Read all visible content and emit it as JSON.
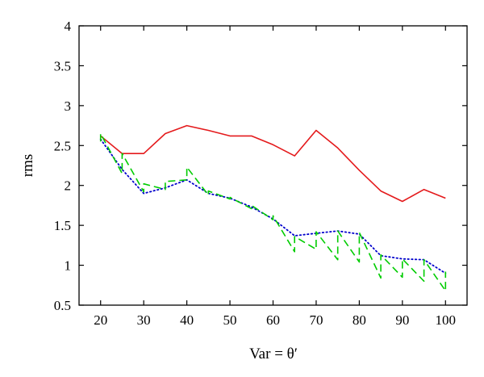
{
  "chart_data": {
    "type": "line",
    "title": "",
    "xlabel": "Var = θ′",
    "ylabel": "rms",
    "xlim": [
      15,
      105
    ],
    "ylim": [
      0.5,
      4
    ],
    "xticks": [
      "20",
      "30",
      "40",
      "50",
      "60",
      "70",
      "80",
      "90",
      "100"
    ],
    "yticks": [
      "0.5",
      "1",
      "1.5",
      "2",
      "2.5",
      "3",
      "3.5",
      "4"
    ],
    "grid": false,
    "legend": "none",
    "series": [
      {
        "color": "#e41a1c",
        "dash": "solid",
        "x": [
          20,
          25,
          30,
          35,
          40,
          45,
          50,
          55,
          60,
          65,
          70,
          75,
          80,
          85,
          90,
          95,
          100
        ],
        "y": [
          2.62,
          2.4,
          2.4,
          2.65,
          2.75,
          2.69,
          2.62,
          2.62,
          2.51,
          2.37,
          2.69,
          2.47,
          2.19,
          1.93,
          1.8,
          1.95,
          1.84
        ]
      },
      {
        "color": "#0000cc",
        "dash": "dotted",
        "x": [
          20,
          25,
          30,
          35,
          40,
          45,
          50,
          55,
          60,
          65,
          70,
          75,
          80,
          85,
          90,
          95,
          100
        ],
        "y": [
          2.58,
          2.2,
          1.9,
          1.97,
          2.07,
          1.9,
          1.84,
          1.73,
          1.58,
          1.37,
          1.4,
          1.43,
          1.39,
          1.12,
          1.08,
          1.07,
          0.9
        ]
      },
      {
        "color": "#00cc00",
        "dash": "dashed",
        "x": [
          20,
          20,
          25,
          25,
          30,
          30,
          35,
          35,
          40,
          40,
          45,
          45,
          50,
          50,
          55,
          55,
          60,
          60,
          65,
          65,
          70,
          70,
          75,
          75,
          80,
          80,
          85,
          85,
          90,
          90,
          95,
          95,
          100,
          100
        ],
        "y": [
          2.55,
          2.65,
          2.15,
          2.4,
          1.92,
          2.02,
          1.95,
          2.05,
          2.07,
          2.23,
          1.88,
          1.93,
          1.83,
          1.85,
          1.71,
          1.75,
          1.57,
          1.62,
          1.17,
          1.36,
          1.2,
          1.42,
          1.07,
          1.43,
          1.04,
          1.41,
          0.84,
          1.13,
          0.85,
          1.08,
          0.8,
          1.07,
          0.68,
          0.92
        ]
      }
    ]
  }
}
